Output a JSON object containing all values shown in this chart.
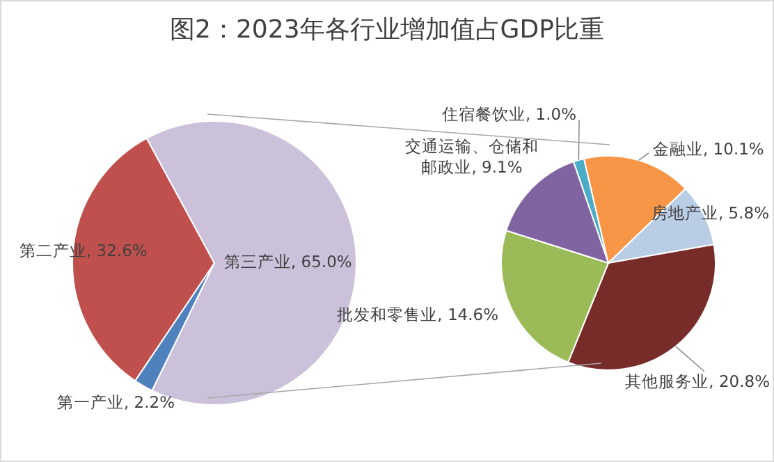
{
  "chart_data": [
    {
      "type": "pie",
      "title": "图2：2023年各行业增加值占GDP比重",
      "categories": [
        "第一产业",
        "第二产业",
        "第三产业"
      ],
      "values": [
        2.2,
        32.6,
        65.0
      ],
      "value_labels": [
        "2.2%",
        "32.6%",
        "65.0%"
      ],
      "colors": [
        "#4f81bd",
        "#c0504d",
        "#ccc1da"
      ]
    },
    {
      "type": "pie",
      "categories": [
        "住宿餐饮业",
        "金融业",
        "房地产业",
        "其他服务业",
        "批发和零售业",
        "交通运输、仓储和邮政业"
      ],
      "values": [
        1.0,
        10.1,
        5.8,
        20.8,
        14.6,
        9.1
      ],
      "value_labels": [
        "1.0%",
        "10.1%",
        "5.8%",
        "20.8%",
        "14.6%",
        "9.1%"
      ],
      "colors": [
        "#4bacc6",
        "#f79646",
        "#b9cde5",
        "#772c2a",
        "#9bbb59",
        "#8064a2"
      ]
    }
  ]
}
